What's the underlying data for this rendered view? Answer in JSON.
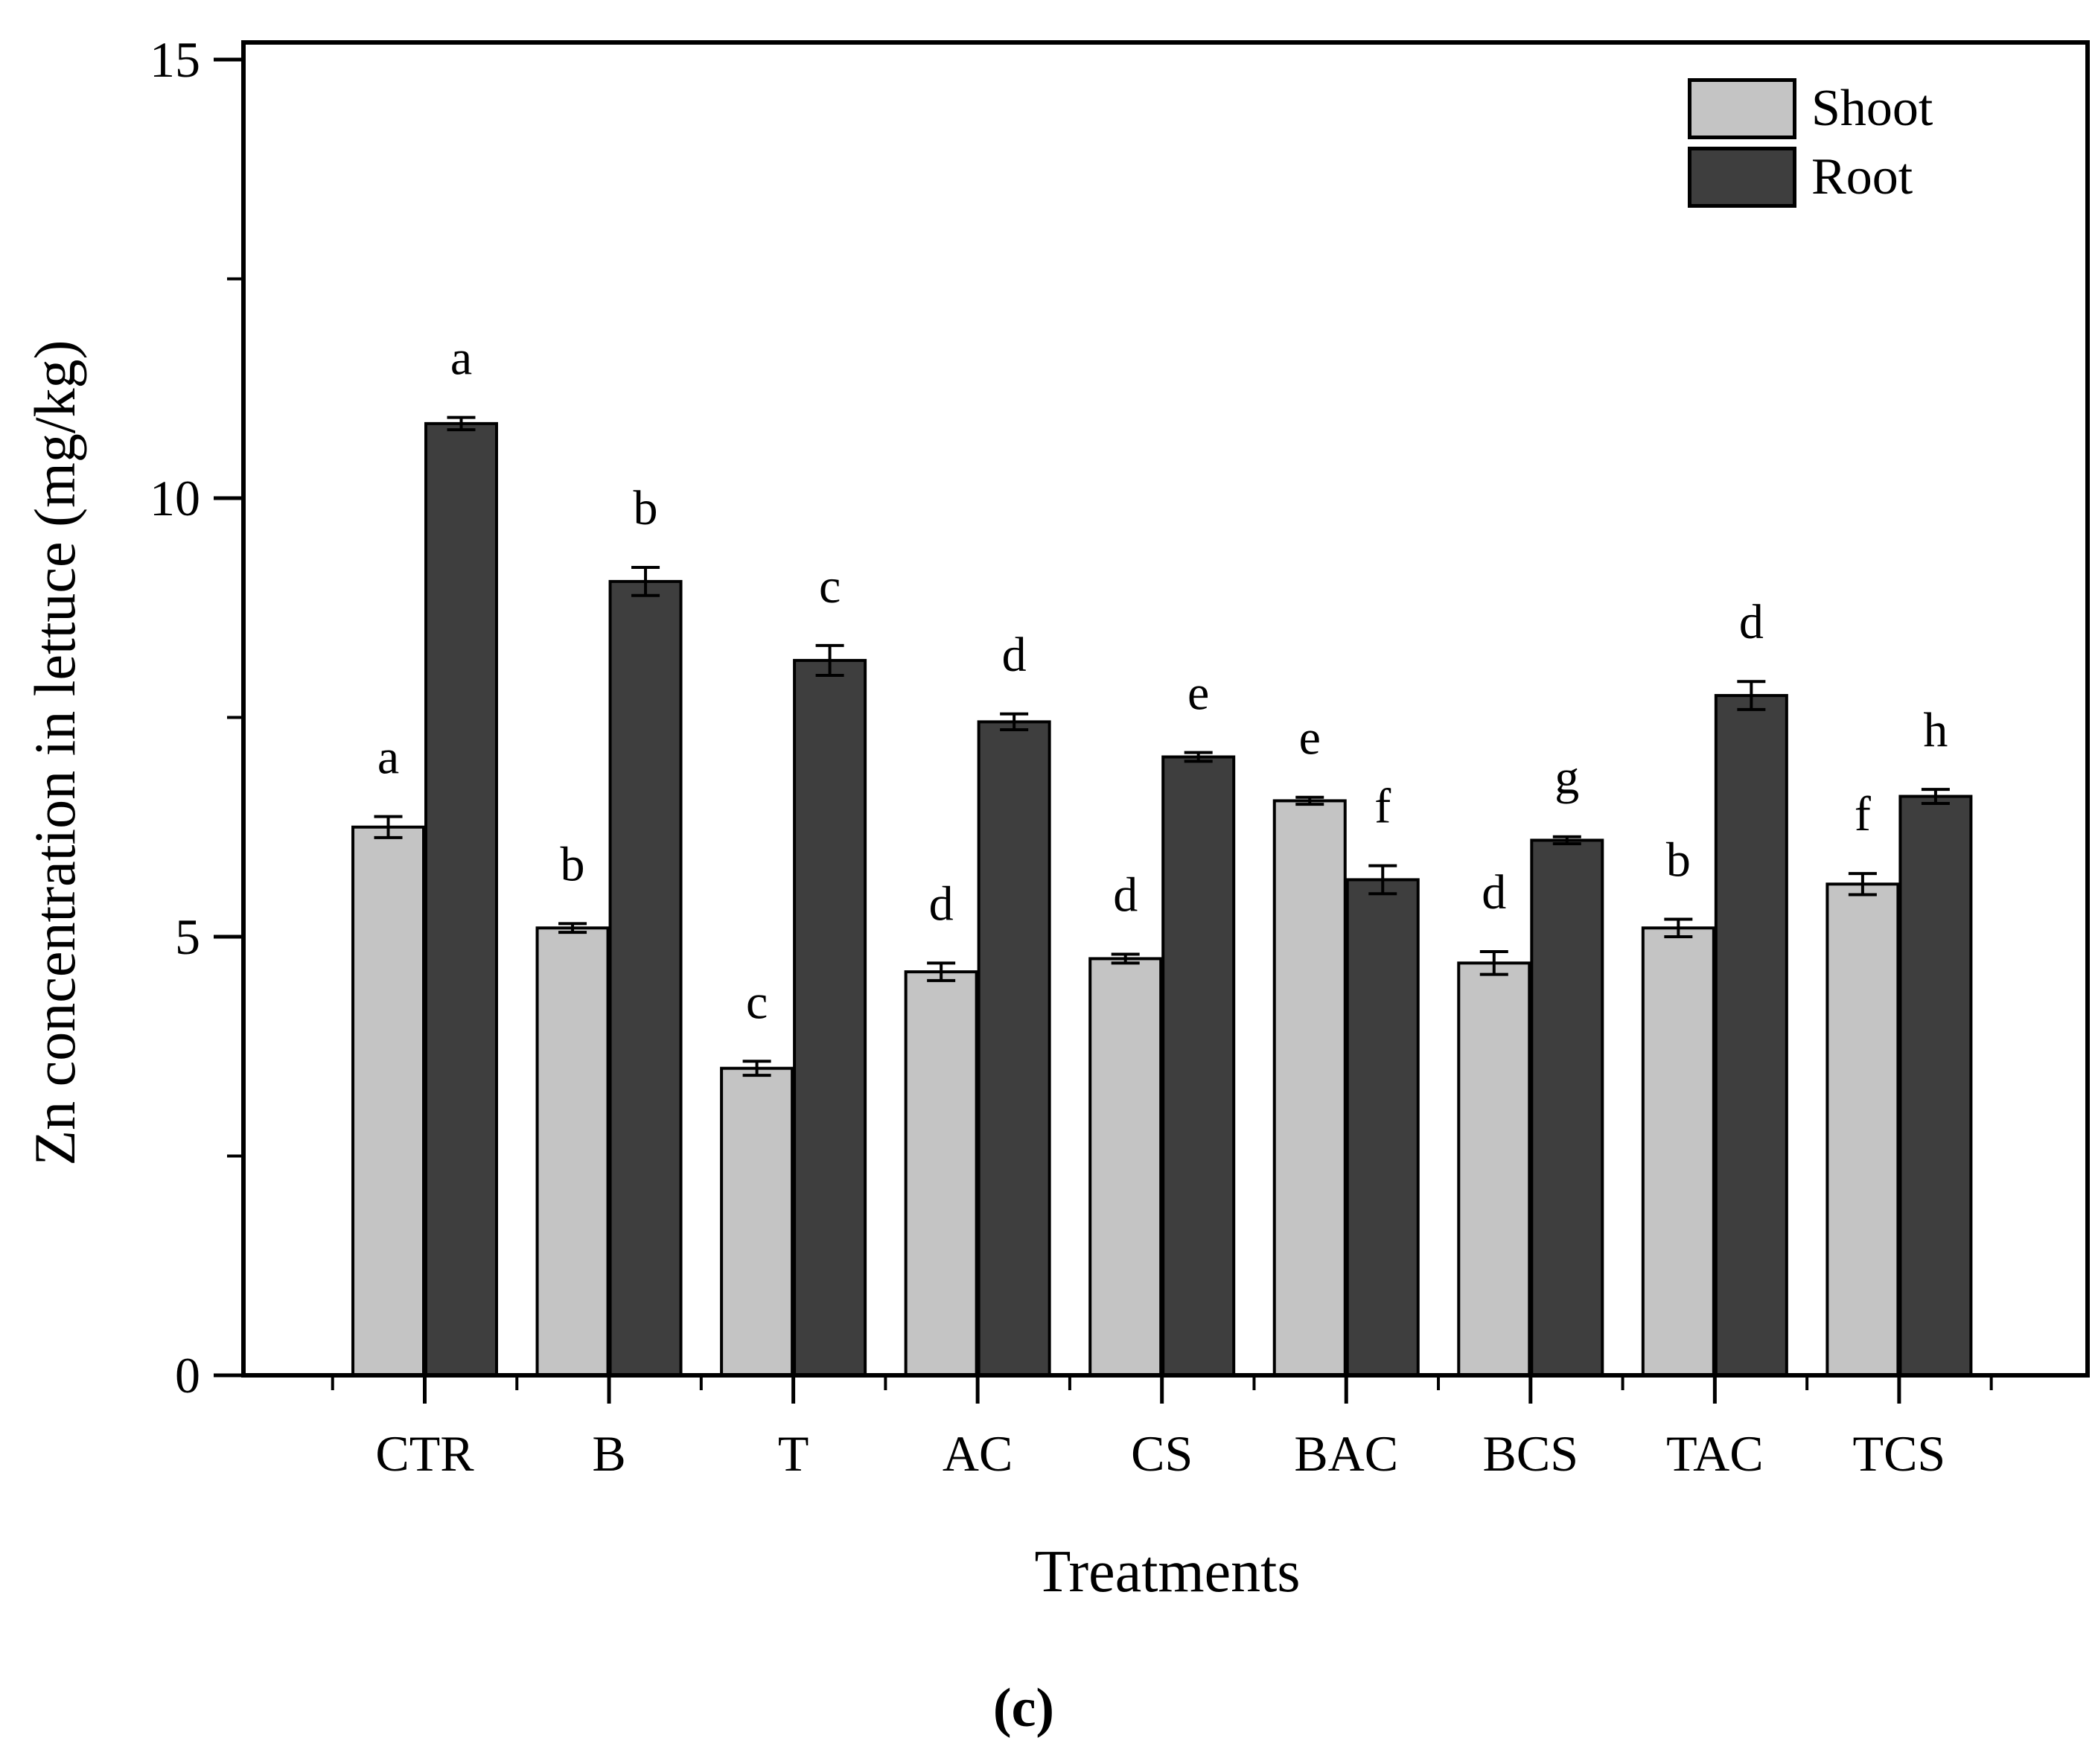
{
  "figure": {
    "caption": "(c)",
    "background": "#ffffff"
  },
  "chart_data": {
    "type": "bar",
    "title": "",
    "xlabel": "Treatments",
    "ylabel": "Zn concentration in lettuce (mg/kg)",
    "ylim": [
      0,
      15
    ],
    "yticks_major": [
      0,
      5,
      10,
      15
    ],
    "yticks_minor": [
      2.5,
      7.5,
      12.5
    ],
    "grid": false,
    "bar_outline": "#000000",
    "axis_color": "#000000",
    "categories": [
      "CTR",
      "B",
      "T",
      "AC",
      "CS",
      "BAC",
      "BCS",
      "TAC",
      "TCS"
    ],
    "series": [
      {
        "name": "Shoot",
        "color": "#c4c4c4",
        "values": [
          6.25,
          5.1,
          3.5,
          4.6,
          4.75,
          6.55,
          4.7,
          5.1,
          5.6
        ],
        "errors": [
          0.12,
          0.05,
          0.08,
          0.1,
          0.05,
          0.04,
          0.13,
          0.1,
          0.12
        ],
        "letters": [
          "a",
          "b",
          "c",
          "d",
          "d",
          "e",
          "d",
          "b",
          "f"
        ]
      },
      {
        "name": "Root",
        "color": "#3e3e3e",
        "values": [
          10.85,
          9.05,
          8.15,
          7.45,
          7.05,
          5.65,
          6.1,
          7.75,
          6.6
        ],
        "errors": [
          0.07,
          0.16,
          0.17,
          0.09,
          0.05,
          0.16,
          0.04,
          0.16,
          0.08
        ],
        "letters": [
          "a",
          "b",
          "c",
          "d",
          "e",
          "f",
          "g",
          "d",
          "h"
        ]
      }
    ],
    "legend": {
      "position": "top-right",
      "entries": [
        "Shoot",
        "Root"
      ]
    }
  }
}
